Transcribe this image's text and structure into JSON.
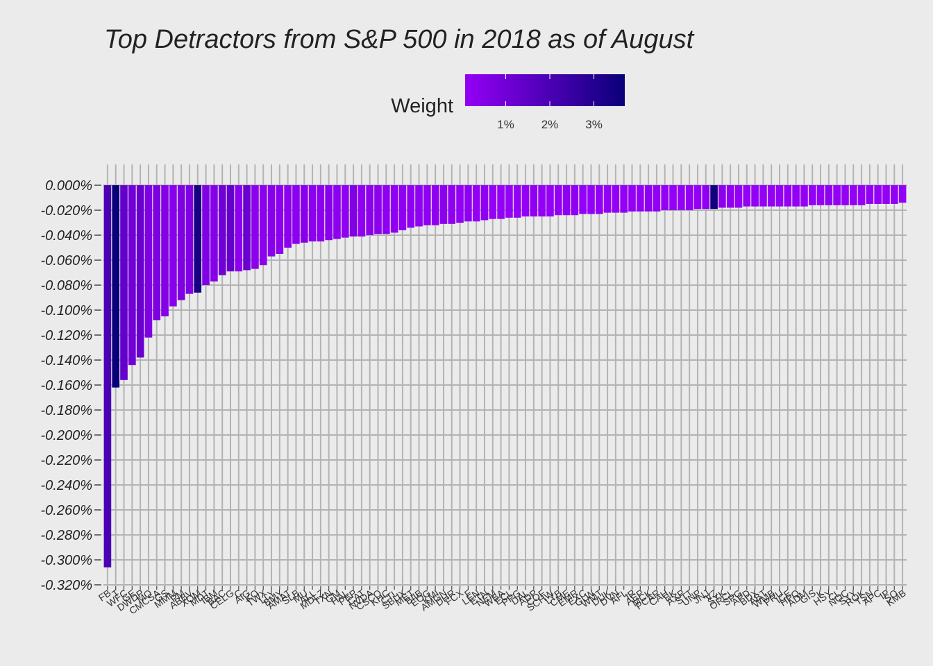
{
  "chart_data": {
    "type": "bar",
    "title": "Top Detractors from S&P 500 in 2018 as of August",
    "legend": {
      "title": "Weight",
      "ticks": [
        "1%",
        "2%",
        "3%"
      ],
      "tick_values": [
        1,
        2,
        3
      ],
      "range": [
        0.08,
        3.7
      ],
      "position": "top",
      "color_low": "#9400f6",
      "color_high": "#0a0078"
    },
    "y_tick_labels": [
      "0.000%",
      "-0.020%",
      "-0.040%",
      "-0.060%",
      "-0.080%",
      "-0.100%",
      "-0.120%",
      "-0.140%",
      "-0.160%",
      "-0.180%",
      "-0.200%",
      "-0.220%",
      "-0.240%",
      "-0.260%",
      "-0.280%",
      "-0.300%",
      "-0.320%"
    ],
    "ylim": [
      -0.32,
      0
    ],
    "xlabel": "",
    "ylabel": "",
    "grid": true,
    "categories": [
      "FB",
      "T",
      "WFC",
      "GE",
      "DWDP",
      "MO",
      "CMCSA",
      "GS",
      "MMM",
      "PM",
      "ABBV",
      "XOM",
      "MDT",
      "IBM",
      "BAC",
      "CELG",
      "C",
      "AIG",
      "KO",
      "TWX",
      "LLY",
      "BMY",
      "AMAT",
      "SLB",
      "MU",
      "ALL",
      "MDLZ",
      "TXN",
      "GM",
      "HAL",
      "PEP",
      "CAT",
      "NVDA",
      "CSCO",
      "KHC",
      "CTL",
      "SBUX",
      "MET",
      "BIIB",
      "EOG",
      "KMI",
      "AMGN",
      "DHR",
      "FCX",
      "F",
      "LEN",
      "ETN",
      "NEM",
      "WBA",
      "ECL",
      "PPG",
      "DAL",
      "ADP",
      "COF",
      "SCHW",
      "LYB",
      "CME",
      "EMR",
      "EXC",
      "GLW",
      "WMT",
      "DUK",
      "DVN",
      "AFL",
      "IR",
      "AEP",
      "MCK",
      "PCAR",
      "CAH",
      "BK",
      "AXP",
      "STT",
      "UNP",
      "JNJ",
      "VZ",
      "SYK",
      "ORCL",
      "SPG",
      "APD",
      "BDX",
      "ABT",
      "WMB",
      "PRU",
      "ICE",
      "HPQ",
      "ADM",
      "GIS",
      "K",
      "HSY",
      "CL",
      "NOC",
      "SYY",
      "ROK",
      "TSN",
      "APC",
      "IP",
      "SO",
      "KMB"
    ],
    "values": [
      -0.306,
      -0.162,
      -0.156,
      -0.144,
      -0.138,
      -0.122,
      -0.108,
      -0.105,
      -0.097,
      -0.092,
      -0.087,
      -0.086,
      -0.08,
      -0.077,
      -0.072,
      -0.069,
      -0.069,
      -0.068,
      -0.067,
      -0.064,
      -0.057,
      -0.055,
      -0.05,
      -0.047,
      -0.046,
      -0.045,
      -0.045,
      -0.044,
      -0.043,
      -0.042,
      -0.041,
      -0.041,
      -0.04,
      -0.039,
      -0.039,
      -0.038,
      -0.036,
      -0.034,
      -0.033,
      -0.032,
      -0.032,
      -0.031,
      -0.031,
      -0.03,
      -0.029,
      -0.029,
      -0.028,
      -0.027,
      -0.027,
      -0.026,
      -0.026,
      -0.025,
      -0.025,
      -0.025,
      -0.025,
      -0.024,
      -0.024,
      -0.024,
      -0.023,
      -0.023,
      -0.023,
      -0.022,
      -0.022,
      -0.022,
      -0.021,
      -0.021,
      -0.021,
      -0.021,
      -0.02,
      -0.02,
      -0.02,
      -0.02,
      -0.019,
      -0.019,
      -0.019,
      -0.018,
      -0.018,
      -0.018,
      -0.017,
      -0.017,
      -0.017,
      -0.017,
      -0.017,
      -0.017,
      -0.017,
      -0.017,
      -0.016,
      -0.016,
      -0.016,
      -0.016,
      -0.016,
      -0.016,
      -0.016,
      -0.015,
      -0.015,
      -0.015,
      -0.015,
      -0.014
    ],
    "weights": [
      2.0,
      3.7,
      1.3,
      1.0,
      1.2,
      0.6,
      0.7,
      0.5,
      0.4,
      0.6,
      0.6,
      3.3,
      0.6,
      0.5,
      1.0,
      1.3,
      0.3,
      1.2,
      0.3,
      0.3,
      0.4,
      0.3,
      0.3,
      0.3,
      0.4,
      0.3,
      0.3,
      0.4,
      0.3,
      0.2,
      0.6,
      0.2,
      0.3,
      0.3,
      0.2,
      0.2,
      0.2,
      0.2,
      0.2,
      0.2,
      0.2,
      0.3,
      0.2,
      0.1,
      0.2,
      0.1,
      0.2,
      0.1,
      0.1,
      0.1,
      0.1,
      0.1,
      0.2,
      0.1,
      0.1,
      0.1,
      0.2,
      0.2,
      0.1,
      0.1,
      0.1,
      0.1,
      0.1,
      0.1,
      0.1,
      0.1,
      0.2,
      0.1,
      0.1,
      0.1,
      0.1,
      0.1,
      0.1,
      0.2,
      3.5,
      0.3,
      0.2,
      0.1,
      0.1,
      0.1,
      0.1,
      0.1,
      0.1,
      0.1,
      0.1,
      0.1,
      0.1,
      0.1,
      0.2,
      0.1,
      0.1,
      0.1,
      0.1,
      0.1,
      0.1,
      0.1,
      0.1,
      0.1
    ]
  }
}
